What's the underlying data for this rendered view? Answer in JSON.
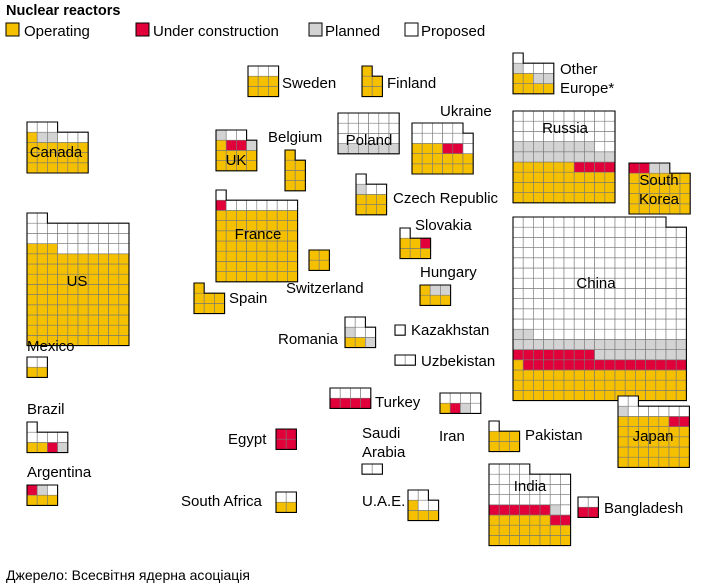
{
  "chart_data": {
    "type": "waffle",
    "title": "Nuclear reactors",
    "legend": {
      "operating": "Operating",
      "under_construction": "Under construction",
      "planned": "Planned",
      "proposed": "Proposed"
    },
    "colors": {
      "operating": "#f5c000",
      "under_construction": "#e2003a",
      "planned": "#d3d3d3",
      "proposed": "#ffffff",
      "grid": "#777777",
      "outline": "#000000"
    },
    "countries": [
      {
        "name": "Canada",
        "label": "Canada",
        "operating": 19,
        "under_construction": 0,
        "planned": 2,
        "proposed": 6
      },
      {
        "name": "US",
        "label": "US",
        "operating": 93,
        "under_construction": 0,
        "planned": 0,
        "proposed": 29
      },
      {
        "name": "Mexico",
        "label": "Mexico",
        "operating": 2,
        "under_construction": 0,
        "planned": 0,
        "proposed": 2
      },
      {
        "name": "Brazil",
        "label": "Brazil",
        "operating": 2,
        "under_construction": 1,
        "planned": 1,
        "proposed": 5
      },
      {
        "name": "Argentina",
        "label": "Argentina",
        "operating": 3,
        "under_construction": 1,
        "planned": 1,
        "proposed": 1
      },
      {
        "name": "Sweden",
        "label": "Sweden",
        "operating": 6,
        "under_construction": 0,
        "planned": 0,
        "proposed": 3
      },
      {
        "name": "Finland",
        "label": "Finland",
        "operating": 5,
        "under_construction": 0,
        "planned": 0,
        "proposed": 0
      },
      {
        "name": "UK",
        "label": "UK",
        "operating": 9,
        "under_construction": 2,
        "planned": 2,
        "proposed": 2
      },
      {
        "name": "Belgium",
        "label": "Belgium",
        "operating": 7,
        "under_construction": 0,
        "planned": 0,
        "proposed": 0
      },
      {
        "name": "France",
        "label": "France",
        "operating": 56,
        "under_construction": 1,
        "planned": 0,
        "proposed": 8
      },
      {
        "name": "Switzerland",
        "label": "Switzerland",
        "operating": 4,
        "under_construction": 0,
        "planned": 0,
        "proposed": 0
      },
      {
        "name": "Spain",
        "label": "Spain",
        "operating": 7,
        "under_construction": 0,
        "planned": 0,
        "proposed": 0
      },
      {
        "name": "Poland",
        "label": "Poland",
        "operating": 0,
        "under_construction": 0,
        "planned": 6,
        "proposed": 18
      },
      {
        "name": "Czech Republic",
        "label": "Czech Republic",
        "operating": 6,
        "under_construction": 0,
        "planned": 1,
        "proposed": 3
      },
      {
        "name": "Slovakia",
        "label": "Slovakia",
        "operating": 5,
        "under_construction": 1,
        "planned": 0,
        "proposed": 1
      },
      {
        "name": "Hungary",
        "label": "Hungary",
        "operating": 4,
        "under_construction": 0,
        "planned": 2,
        "proposed": 0
      },
      {
        "name": "Romania",
        "label": "Romania",
        "operating": 2,
        "under_construction": 0,
        "planned": 2,
        "proposed": 4
      },
      {
        "name": "Ukraine",
        "label": "Ukraine",
        "operating": 15,
        "under_construction": 2,
        "planned": 0,
        "proposed": 12
      },
      {
        "name": "Other Europe",
        "label": "Other Europe*",
        "operating": 6,
        "under_construction": 0,
        "planned": 3,
        "proposed": 4
      },
      {
        "name": "Russia",
        "label": "Russia",
        "operating": 36,
        "under_construction": 4,
        "planned": 18,
        "proposed": 32
      },
      {
        "name": "South Korea",
        "label": "South Korea",
        "operating": 24,
        "under_construction": 2,
        "planned": 2,
        "proposed": 0
      },
      {
        "name": "China",
        "label": "China",
        "operating": 52,
        "under_construction": 24,
        "planned": 28,
        "proposed": 200
      },
      {
        "name": "Kazakhstan",
        "label": "Kazakhstan",
        "operating": 0,
        "under_construction": 0,
        "planned": 0,
        "proposed": 1
      },
      {
        "name": "Uzbekistan",
        "label": "Uzbekistan",
        "operating": 0,
        "under_construction": 0,
        "planned": 0,
        "proposed": 2
      },
      {
        "name": "Turkey",
        "label": "Turkey",
        "operating": 0,
        "under_construction": 4,
        "planned": 0,
        "proposed": 4
      },
      {
        "name": "Iran",
        "label": "Iran",
        "operating": 1,
        "under_construction": 1,
        "planned": 1,
        "proposed": 5
      },
      {
        "name": "Pakistan",
        "label": "Pakistan",
        "operating": 6,
        "under_construction": 0,
        "planned": 0,
        "proposed": 1
      },
      {
        "name": "Japan",
        "label": "Japan",
        "operating": 33,
        "under_construction": 2,
        "planned": 1,
        "proposed": 8
      },
      {
        "name": "Egypt",
        "label": "Egypt",
        "operating": 0,
        "under_construction": 4,
        "planned": 0,
        "proposed": 0
      },
      {
        "name": "Saudi Arabia",
        "label": "Saudi Arabia",
        "operating": 0,
        "under_construction": 0,
        "planned": 0,
        "proposed": 2
      },
      {
        "name": "South Africa",
        "label": "South Africa",
        "operating": 2,
        "under_construction": 0,
        "planned": 0,
        "proposed": 2
      },
      {
        "name": "U.A.E.",
        "label": "U.A.E.",
        "operating": 4,
        "under_construction": 0,
        "planned": 0,
        "proposed": 4
      },
      {
        "name": "India",
        "label": "India",
        "operating": 22,
        "under_construction": 8,
        "planned": 1,
        "proposed": 29
      },
      {
        "name": "Bangladesh",
        "label": "Bangladesh",
        "operating": 0,
        "under_construction": 2,
        "planned": 0,
        "proposed": 2
      }
    ],
    "source": "Джерело: Всесвітня ядерна асоціація"
  }
}
